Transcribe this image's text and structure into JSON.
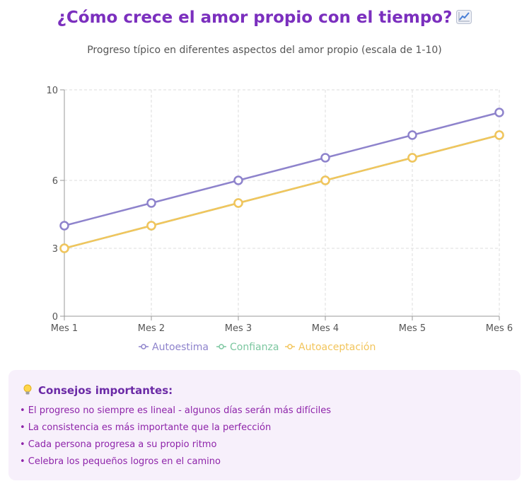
{
  "header": {
    "title": "¿Cómo crece el amor propio con el tiempo?",
    "title_icon": "chart-increasing-icon",
    "subtitle": "Progreso típico en diferentes aspectos del amor propio (escala de 1-10)"
  },
  "chart_data": {
    "type": "line",
    "title": "¿Cómo crece el amor propio con el tiempo?",
    "subtitle": "Progreso típico en diferentes aspectos del amor propio (escala de 1-10)",
    "categories": [
      "Mes 1",
      "Mes 2",
      "Mes 3",
      "Mes 4",
      "Mes 5",
      "Mes 6"
    ],
    "series": [
      {
        "name": "Autoestima",
        "values": [
          4,
          5,
          6,
          7,
          8,
          9
        ],
        "color": "#8e83cc"
      },
      {
        "name": "Confianza",
        "values": [
          3,
          4,
          5,
          6,
          7,
          8
        ],
        "color": "#7cc7a0"
      },
      {
        "name": "Autoaceptación",
        "values": [
          3,
          4,
          5,
          6,
          7,
          8
        ],
        "color": "#f2c55c"
      }
    ],
    "yticks": [
      0,
      3,
      6,
      10
    ],
    "ylim": [
      0,
      10
    ],
    "grid": true,
    "legend": "bottom"
  },
  "tips": {
    "icon": "lightbulb-icon",
    "heading": "Consejos importantes:",
    "items": [
      "• El progreso no siempre es lineal - algunos días serán más difíciles",
      "• La consistencia es más importante que la perfección",
      "• Cada persona progresa a su propio ritmo",
      "• Celebra los pequeños logros en el camino"
    ]
  }
}
